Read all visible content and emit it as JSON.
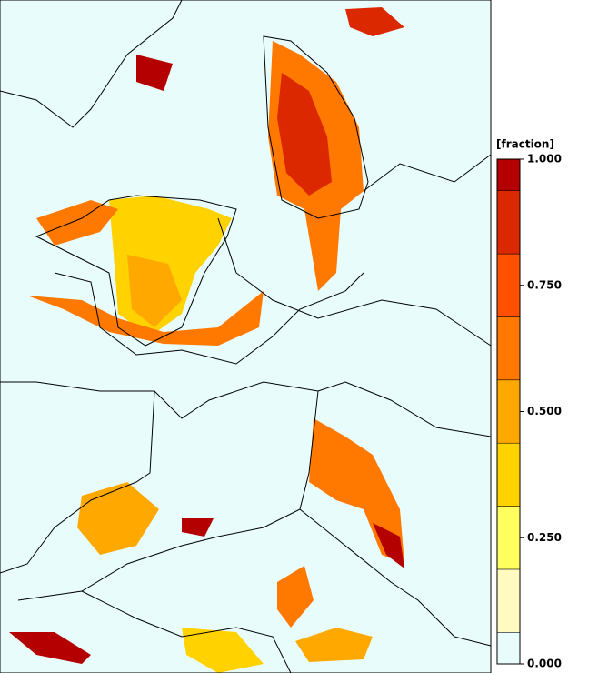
{
  "colorbar": {
    "title": "[fraction]",
    "levels": [
      0,
      0.0625,
      0.1875,
      0.3125,
      0.4375,
      0.5625,
      0.6875,
      0.8125,
      0.9375,
      1
    ],
    "colors": [
      "#e8fcfc",
      "#fffac0",
      "#ffff60",
      "#ffd200",
      "#ffa800",
      "#ff7800",
      "#ff5000",
      "#dc2800",
      "#b40000"
    ],
    "lim": [
      0,
      1
    ],
    "ticks": [
      {
        "value": 0,
        "label": "0.000"
      },
      {
        "value": 0.25,
        "label": "0.250"
      },
      {
        "value": 0.5,
        "label": "0.500"
      },
      {
        "value": 0.75,
        "label": "0.750"
      },
      {
        "value": 1,
        "label": "1.000"
      }
    ]
  }
}
